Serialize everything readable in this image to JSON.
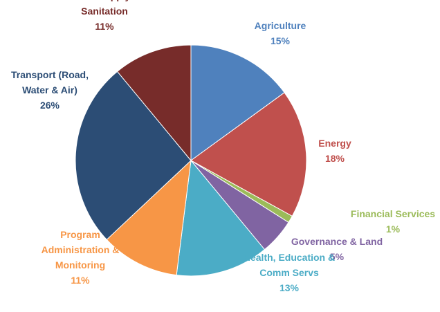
{
  "chart_data": {
    "type": "pie",
    "title": "",
    "slices": [
      {
        "label": [
          "Agriculture"
        ],
        "value": 15,
        "display": "15%",
        "color": "#4f81bd"
      },
      {
        "label": [
          "Energy"
        ],
        "value": 18,
        "display": "18%",
        "color": "#c0504d"
      },
      {
        "label": [
          "Financial Services"
        ],
        "value": 1,
        "display": "1%",
        "color": "#9bbb59"
      },
      {
        "label": [
          "Governance & Land"
        ],
        "value": 5,
        "display": "5%",
        "color": "#8064a2"
      },
      {
        "label": [
          "Health, Education &",
          "Comm Servs"
        ],
        "value": 13,
        "display": "13%",
        "color": "#4bacc6"
      },
      {
        "label": [
          "Program",
          "Administration &",
          "Monitoring"
        ],
        "value": 11,
        "display": "11%",
        "color": "#f79646"
      },
      {
        "label": [
          "Transport (Road,",
          "Water & Air)"
        ],
        "value": 26,
        "display": "26%",
        "color": "#2c4d75"
      },
      {
        "label": [
          "Water Supply &",
          "Sanitation"
        ],
        "value": 11,
        "display": "11%",
        "color": "#772c2a"
      }
    ]
  }
}
